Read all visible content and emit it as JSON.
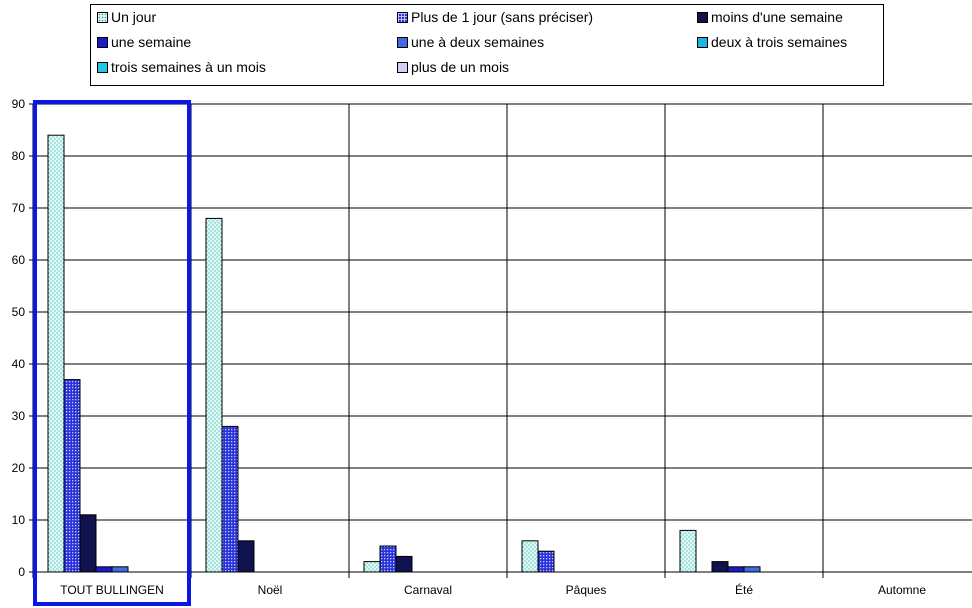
{
  "chart_data": {
    "type": "bar",
    "categories": [
      "TOUT BULLINGEN",
      "Noël",
      "Carnaval",
      "Pâques",
      "Été",
      "Automne"
    ],
    "ylim": [
      0,
      90
    ],
    "yticks": [
      0,
      10,
      20,
      30,
      40,
      50,
      60,
      70,
      80,
      90
    ],
    "grid": true,
    "legend_position": "top",
    "highlighted_category": "TOUT BULLINGEN",
    "highlight_color": "#0a17e6",
    "series": [
      {
        "name": "Un jour",
        "color": "#d9fbf8",
        "pattern": "dots",
        "values": [
          84,
          68,
          2,
          6,
          8,
          0
        ]
      },
      {
        "name": "Plus de 1 jour (sans préciser)",
        "color": "#2a33d8",
        "pattern": "grid",
        "values": [
          37,
          28,
          5,
          4,
          0,
          0
        ]
      },
      {
        "name": "moins d'une semaine",
        "color": "#10124e",
        "pattern": "solid",
        "values": [
          11,
          6,
          3,
          0,
          2,
          0
        ]
      },
      {
        "name": "une semaine",
        "color": "#1a1ac8",
        "pattern": "solid",
        "values": [
          1,
          0,
          0,
          0,
          1,
          0
        ]
      },
      {
        "name": "une à deux semaines",
        "color": "#4169e1",
        "pattern": "solid",
        "values": [
          1,
          0,
          0,
          0,
          1,
          0
        ]
      },
      {
        "name": "deux à trois semaines",
        "color": "#1cb4e0",
        "pattern": "solid",
        "values": [
          0,
          0,
          0,
          0,
          0,
          0
        ]
      },
      {
        "name": "trois semaines à un mois",
        "color": "#22c6e8",
        "pattern": "solid",
        "values": [
          0,
          0,
          0,
          0,
          0,
          0
        ]
      },
      {
        "name": "plus de un mois",
        "color": "#d0d0f2",
        "pattern": "solid",
        "values": [
          0,
          0,
          0,
          0,
          0,
          0
        ]
      }
    ]
  }
}
